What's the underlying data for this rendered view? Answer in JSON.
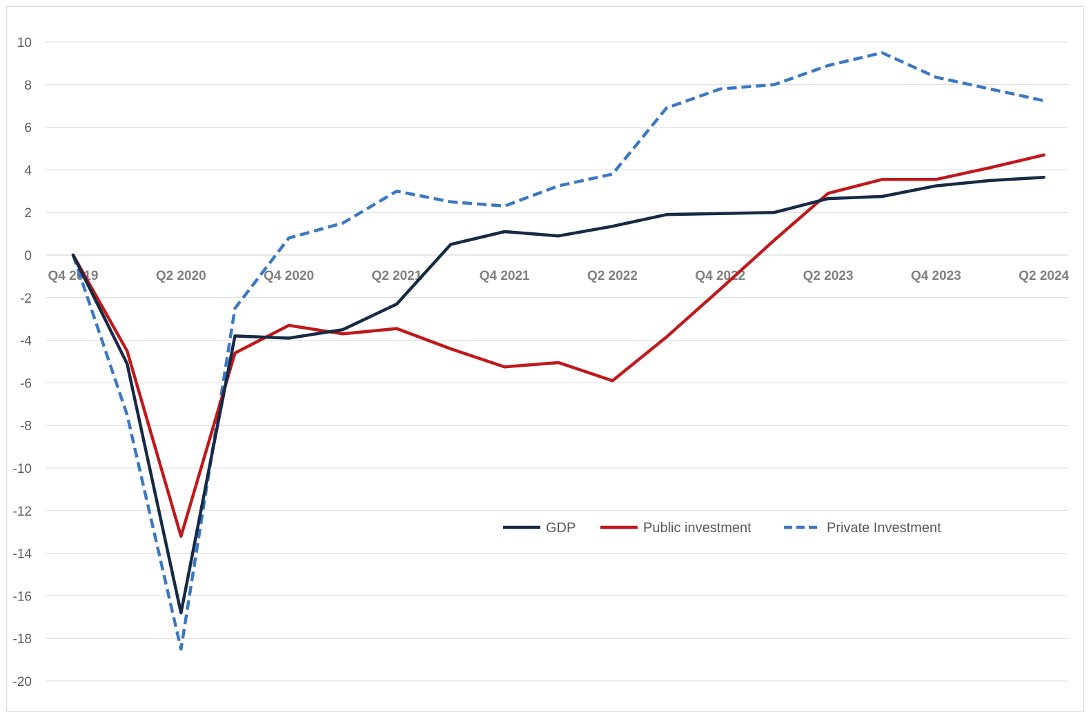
{
  "chart_data": {
    "type": "line",
    "title": "",
    "xlabel": "",
    "ylabel": "",
    "ylim": [
      -20,
      10
    ],
    "yticks": [
      10,
      8,
      6,
      4,
      2,
      0,
      -2,
      -4,
      -6,
      -8,
      -10,
      -12,
      -14,
      -16,
      -18,
      -20
    ],
    "grid": true,
    "legend_position": "lower-right-center",
    "x": [
      "Q4 2019",
      "Q1 2020",
      "Q2 2020",
      "Q3 2020",
      "Q4 2020",
      "Q1 2021",
      "Q2 2021",
      "Q3 2021",
      "Q4 2021",
      "Q1 2022",
      "Q2 2022",
      "Q3 2022",
      "Q4 2022",
      "Q1 2023",
      "Q2 2023",
      "Q3 2023",
      "Q4 2023",
      "Q1 2024",
      "Q2 2024"
    ],
    "x_tick_labels": [
      "Q4 2019",
      "",
      "Q2 2020",
      "",
      "Q4 2020",
      "",
      "Q2 2021",
      "",
      "Q4 2021",
      "",
      "Q2 2022",
      "",
      "Q4 2022",
      "",
      "Q2 2023",
      "",
      "Q4 2023",
      "",
      "Q2 2024"
    ],
    "series": [
      {
        "name": "GDP",
        "color": "#172a45",
        "dash": "solid",
        "values": [
          0,
          -5.1,
          -16.8,
          -3.8,
          -3.9,
          -3.5,
          -2.3,
          0.5,
          1.1,
          0.9,
          1.35,
          1.9,
          1.95,
          2.0,
          2.65,
          2.75,
          3.25,
          3.5,
          3.65
        ]
      },
      {
        "name": "Public investment",
        "color": "#c0191c",
        "dash": "solid",
        "values": [
          0,
          -4.5,
          -13.2,
          -4.6,
          -3.3,
          -3.7,
          -3.45,
          -4.4,
          -5.25,
          -5.05,
          -5.9,
          -3.85,
          -1.6,
          0.7,
          2.9,
          3.55,
          3.55,
          4.1,
          4.7
        ]
      },
      {
        "name": "Private Investment",
        "color": "#3b78c3",
        "dash": "dashed",
        "values": [
          0,
          -7.5,
          -18.5,
          -2.5,
          0.8,
          1.5,
          3.0,
          2.5,
          2.3,
          3.25,
          3.8,
          6.9,
          7.8,
          8.0,
          8.9,
          9.5,
          8.35,
          7.8,
          7.25
        ]
      }
    ]
  }
}
